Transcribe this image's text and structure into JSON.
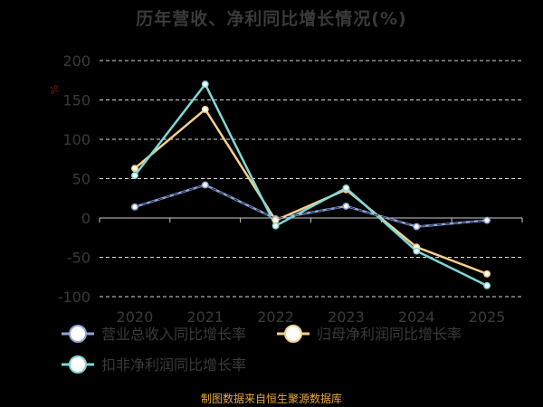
{
  "title": "历年营收、净利同比增长情况(%)",
  "footer": "制图数据来自恒生聚源数据库",
  "chart_data": {
    "type": "line",
    "title": "历年营收、净利同比增长情况(%)",
    "ylabel": "%",
    "categories": [
      "2020",
      "2021",
      "2022",
      "2023",
      "2024",
      "2025"
    ],
    "ylim": [
      -100,
      200
    ],
    "yticks": [
      200,
      150,
      100,
      50,
      0,
      -50,
      -100
    ],
    "grid": true,
    "legend_position": "bottom",
    "series": [
      {
        "name": "营业总收入同比增长率",
        "color": "#8fa3d6",
        "values": [
          14,
          42,
          -1,
          15,
          -11,
          -3
        ]
      },
      {
        "name": "归母净利润同比增长率",
        "color": "#f7d08e",
        "values": [
          63,
          138,
          -3,
          36,
          -37,
          -71
        ]
      },
      {
        "name": "扣非净利润同比增长率",
        "color": "#7fd8d8",
        "values": [
          54,
          170,
          -10,
          38,
          -42,
          -86
        ]
      }
    ]
  }
}
